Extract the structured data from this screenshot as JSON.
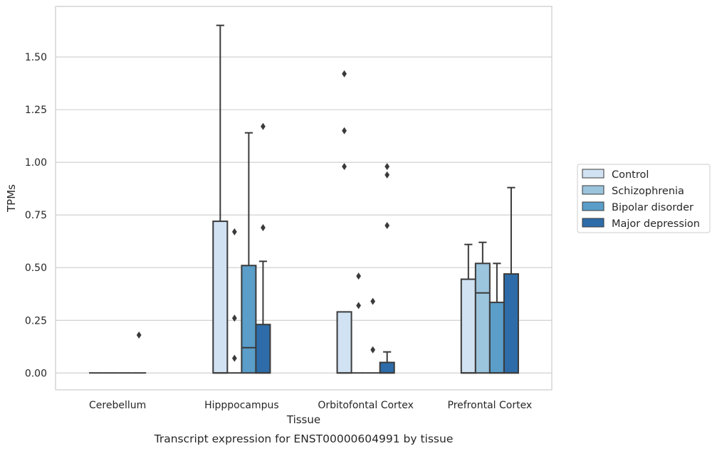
{
  "chart_data": {
    "type": "box",
    "xlabel": "Tissue",
    "ylabel": "TPMs",
    "caption": "Transcript expression for ENST00000604991 by tissue",
    "ylim": [
      -0.08,
      1.74
    ],
    "yticks": [
      "0.00",
      "0.25",
      "0.50",
      "0.75",
      "1.00",
      "1.25",
      "1.50"
    ],
    "grid": "horizontal",
    "legend_position": "right",
    "categories": [
      "Cerebellum",
      "Hipppocampus",
      "Orbitofontal Cortex",
      "Prefrontal Cortex"
    ],
    "series": [
      {
        "name": "Control",
        "color": "#d1e2f2",
        "boxes": [
          {
            "q1": 0,
            "median": 0,
            "q3": 0,
            "whisker_low": 0,
            "whisker_high": 0,
            "outliers": []
          },
          {
            "q1": 0,
            "median": 0,
            "q3": 0.72,
            "whisker_low": 0,
            "whisker_high": 1.65,
            "outliers": []
          },
          {
            "q1": 0,
            "median": 0,
            "q3": 0.29,
            "whisker_low": 0,
            "whisker_high": 0.29,
            "outliers": [
              0.98,
              1.15,
              1.42
            ]
          },
          {
            "q1": 0,
            "median": 0,
            "q3": 0.445,
            "whisker_low": 0,
            "whisker_high": 0.61,
            "outliers": []
          }
        ]
      },
      {
        "name": "Schizophrenia",
        "color": "#9bc4dd",
        "boxes": [
          {
            "q1": 0,
            "median": 0,
            "q3": 0,
            "whisker_low": 0,
            "whisker_high": 0,
            "outliers": []
          },
          {
            "q1": 0,
            "median": 0,
            "q3": 0,
            "whisker_low": 0,
            "whisker_high": 0,
            "outliers": [
              0.07,
              0.26,
              0.67
            ]
          },
          {
            "q1": 0,
            "median": 0,
            "q3": 0,
            "whisker_low": 0,
            "whisker_high": 0,
            "outliers": [
              0.32,
              0.46
            ]
          },
          {
            "q1": 0,
            "median": 0.38,
            "q3": 0.52,
            "whisker_low": 0,
            "whisker_high": 0.62,
            "outliers": []
          }
        ]
      },
      {
        "name": "Bipolar disorder",
        "color": "#5a9ec9",
        "boxes": [
          {
            "q1": 0,
            "median": 0,
            "q3": 0,
            "whisker_low": 0,
            "whisker_high": 0,
            "outliers": []
          },
          {
            "q1": 0,
            "median": 0.12,
            "q3": 0.51,
            "whisker_low": 0,
            "whisker_high": 1.14,
            "outliers": []
          },
          {
            "q1": 0,
            "median": 0,
            "q3": 0,
            "whisker_low": 0,
            "whisker_high": 0,
            "outliers": [
              0.11,
              0.34
            ]
          },
          {
            "q1": 0,
            "median": 0,
            "q3": 0.335,
            "whisker_low": 0,
            "whisker_high": 0.52,
            "outliers": []
          }
        ]
      },
      {
        "name": "Major depression",
        "color": "#2d6ca8",
        "boxes": [
          {
            "q1": 0,
            "median": 0,
            "q3": 0,
            "whisker_low": 0,
            "whisker_high": 0,
            "outliers": [
              0.18
            ]
          },
          {
            "q1": 0,
            "median": 0,
            "q3": 0.23,
            "whisker_low": 0,
            "whisker_high": 0.53,
            "outliers": [
              0.69,
              1.17
            ]
          },
          {
            "q1": 0,
            "median": 0,
            "q3": 0.05,
            "whisker_low": 0,
            "whisker_high": 0.1,
            "outliers": [
              0.7,
              0.94,
              0.98
            ]
          },
          {
            "q1": 0,
            "median": 0,
            "q3": 0.47,
            "whisker_low": 0,
            "whisker_high": 0.88,
            "outliers": []
          }
        ]
      }
    ]
  }
}
